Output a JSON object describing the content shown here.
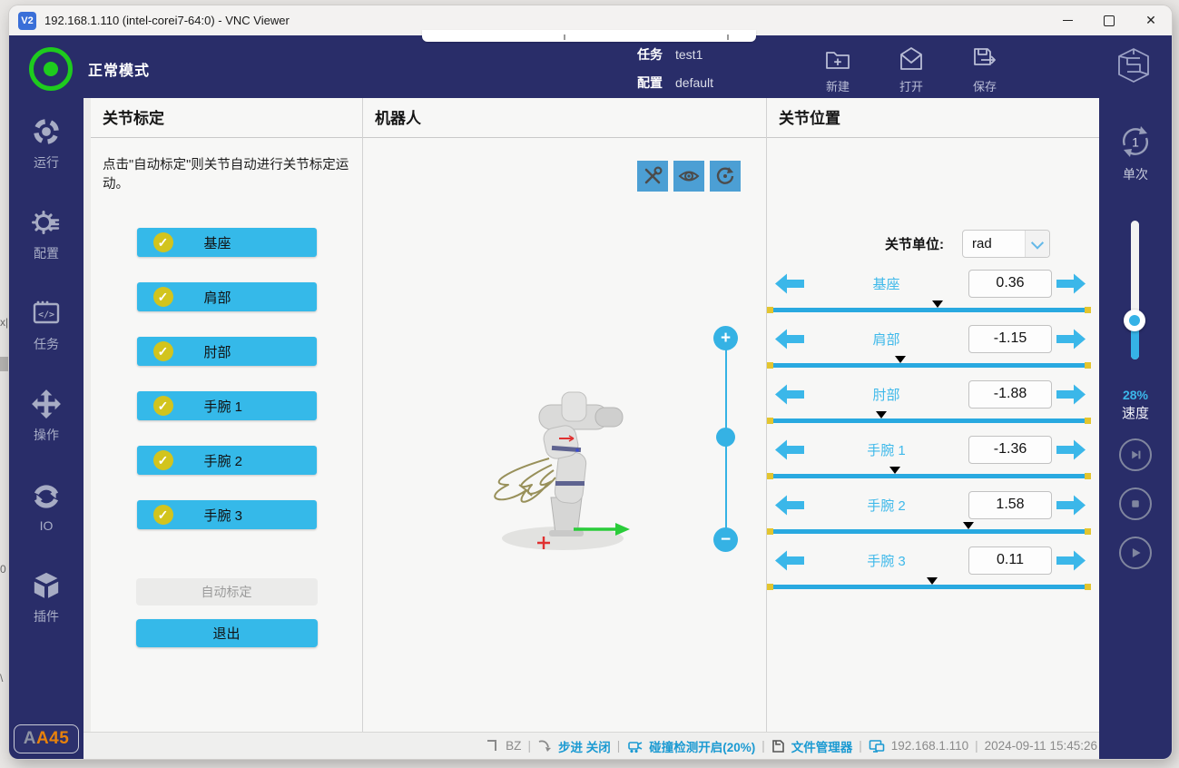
{
  "window": {
    "title": "192.168.1.110 (intel-corei7-64:0) - VNC Viewer",
    "vnc_badge": "V2",
    "close_glyph": "✕"
  },
  "header": {
    "mode_label": "正常模式",
    "task_label": "任务",
    "task_value": "test1",
    "config_label": "配置",
    "config_value": "default",
    "actions": {
      "new": "新建",
      "open": "打开",
      "save": "保存"
    }
  },
  "sidebar": {
    "items": [
      {
        "label": "运行"
      },
      {
        "label": "配置"
      },
      {
        "label": "任务"
      },
      {
        "label": "操作"
      },
      {
        "label": "IO"
      },
      {
        "label": "插件"
      }
    ],
    "badge_gray": "A",
    "badge_orange": "A45"
  },
  "calibration_panel": {
    "title": "关节标定",
    "description": "点击\"自动标定\"则关节自动进行关节标定运动。",
    "joints": [
      "基座",
      "肩部",
      "肘部",
      "手腕 1",
      "手腕 2",
      "手腕 3"
    ],
    "auto_button": "自动标定",
    "exit_button": "退出"
  },
  "robot_panel": {
    "title": "机器人"
  },
  "joints_panel": {
    "title": "关节位置",
    "unit_label": "关节单位:",
    "unit_value": "rad",
    "range_min": -6.2832,
    "range_max": 6.2832,
    "rows": [
      {
        "name": "基座",
        "value": "0.36"
      },
      {
        "name": "肩部",
        "value": "-1.15"
      },
      {
        "name": "肘部",
        "value": "-1.88"
      },
      {
        "name": "手腕 1",
        "value": "-1.36"
      },
      {
        "name": "手腕 2",
        "value": "1.58"
      },
      {
        "name": "手腕 3",
        "value": "0.11"
      }
    ]
  },
  "right_sidebar": {
    "single_label": "单次",
    "single_badge": "1",
    "speed_percent": "28%",
    "speed_label": "速度",
    "speed_value": 28
  },
  "status_bar": {
    "bz": "BZ",
    "step": "步进 关闭",
    "collision": "碰撞检测开启(20%)",
    "file_manager": "文件管理器",
    "ip": "192.168.1.110",
    "datetime": "2024-09-11 15:45:26",
    "separator": "|"
  },
  "icons": {
    "check": "✓",
    "plus": "+",
    "minus": "−"
  },
  "colors": {
    "navy": "#292d69",
    "accent_blue": "#35b9e9",
    "slider_blue": "#29a9e0",
    "check_yellow": "#d2c41d",
    "bar_end_yellow": "#e3c52f",
    "status_green": "#1ecb1e",
    "badge_orange": "#e8820c",
    "status_text_blue": "#1b9ad2"
  }
}
